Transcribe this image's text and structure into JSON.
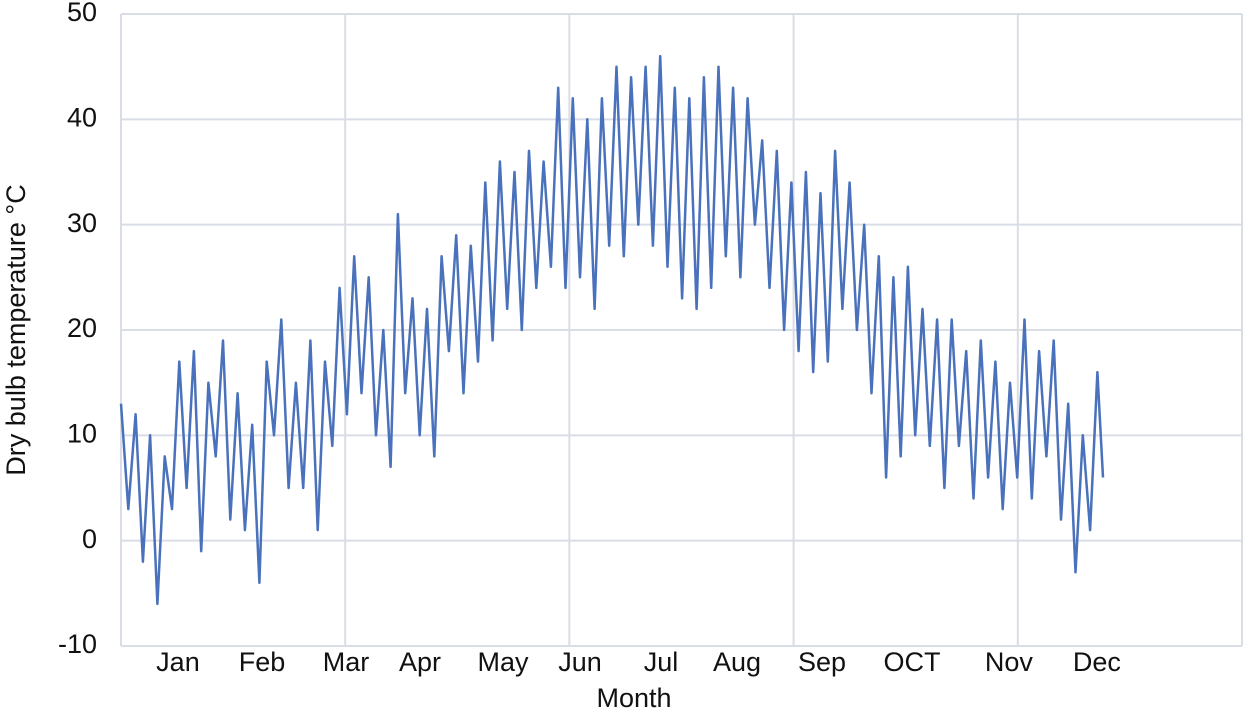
{
  "chart_data": {
    "type": "line",
    "x_label": "Month",
    "y_label": "Dry bulb temperature °C",
    "xlim": [
      0,
      10000
    ],
    "xgrid": [
      0,
      2000,
      4000,
      6000,
      8000,
      10000
    ],
    "xticks": [
      {
        "value": 508,
        "label": "Jan"
      },
      {
        "value": 1258,
        "label": "Feb"
      },
      {
        "value": 2007,
        "label": "Mar"
      },
      {
        "value": 2667,
        "label": "Apr"
      },
      {
        "value": 3408,
        "label": "May"
      },
      {
        "value": 4095,
        "label": "Jun"
      },
      {
        "value": 4817,
        "label": "Jul"
      },
      {
        "value": 5495,
        "label": "Aug"
      },
      {
        "value": 6253,
        "label": "Sep"
      },
      {
        "value": 7056,
        "label": "OCT"
      },
      {
        "value": 7921,
        "label": "Nov"
      },
      {
        "value": 8706,
        "label": "Dec"
      }
    ],
    "ylim": [
      -10,
      50
    ],
    "yticks": [
      -10,
      0,
      10,
      20,
      30,
      40,
      50
    ],
    "grid": true,
    "series": [
      {
        "color": "#4a71bb",
        "x": [
          0,
          65,
          130,
          195,
          260,
          325,
          390,
          455,
          520,
          585,
          650,
          715,
          780,
          845,
          910,
          975,
          1040,
          1105,
          1170,
          1235,
          1300,
          1365,
          1430,
          1495,
          1560,
          1625,
          1690,
          1755,
          1820,
          1885,
          1950,
          2015,
          2080,
          2145,
          2210,
          2275,
          2340,
          2405,
          2470,
          2535,
          2600,
          2665,
          2730,
          2795,
          2860,
          2925,
          2990,
          3055,
          3120,
          3185,
          3250,
          3315,
          3380,
          3445,
          3510,
          3575,
          3640,
          3705,
          3770,
          3835,
          3900,
          3965,
          4030,
          4095,
          4160,
          4225,
          4290,
          4355,
          4420,
          4485,
          4550,
          4615,
          4680,
          4745,
          4810,
          4875,
          4940,
          5005,
          5070,
          5135,
          5200,
          5265,
          5330,
          5395,
          5460,
          5525,
          5590,
          5655,
          5720,
          5785,
          5850,
          5915,
          5980,
          6045,
          6110,
          6175,
          6240,
          6305,
          6370,
          6435,
          6500,
          6565,
          6630,
          6695,
          6760,
          6825,
          6890,
          6955,
          7020,
          7085,
          7150,
          7215,
          7280,
          7345,
          7410,
          7475,
          7540,
          7605,
          7670,
          7735,
          7800,
          7865,
          7930,
          7995,
          8060,
          8125,
          8190,
          8255,
          8320,
          8385,
          8450,
          8515,
          8580,
          8645,
          8710,
          8760
        ],
        "values": [
          13,
          3,
          12,
          -2,
          10,
          -6,
          8,
          3,
          17,
          5,
          18,
          -1,
          15,
          8,
          19,
          2,
          14,
          1,
          11,
          -4,
          17,
          10,
          21,
          5,
          15,
          5,
          19,
          1,
          17,
          9,
          24,
          12,
          27,
          14,
          25,
          10,
          20,
          7,
          31,
          14,
          23,
          10,
          22,
          8,
          27,
          18,
          29,
          14,
          28,
          17,
          34,
          19,
          36,
          22,
          35,
          20,
          37,
          24,
          36,
          26,
          43,
          24,
          42,
          25,
          40,
          22,
          42,
          28,
          45,
          27,
          44,
          30,
          45,
          28,
          46,
          26,
          43,
          23,
          42,
          22,
          44,
          24,
          45,
          27,
          43,
          25,
          42,
          30,
          38,
          24,
          37,
          20,
          34,
          18,
          35,
          16,
          33,
          17,
          37,
          22,
          34,
          20,
          30,
          14,
          27,
          6,
          25,
          8,
          26,
          10,
          22,
          9,
          21,
          5,
          21,
          9,
          18,
          4,
          19,
          6,
          17,
          3,
          15,
          6,
          21,
          4,
          18,
          8,
          19,
          2,
          13,
          -3,
          10,
          1,
          16,
          6
        ]
      }
    ]
  }
}
